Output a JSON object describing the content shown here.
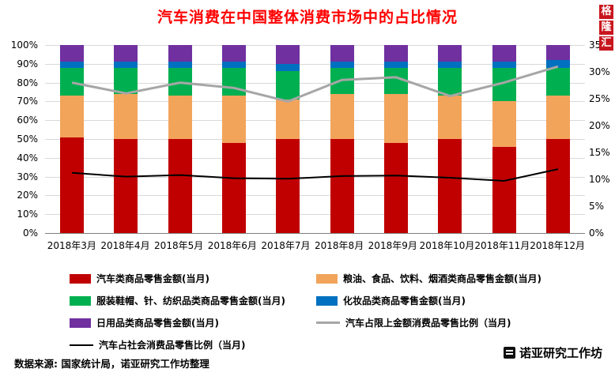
{
  "title": "汽车消费在中国整体消费市场中的占比情况",
  "source_note": "数据来源: 国家统计局，诺亚研究工作坊整理",
  "brand": "诺亚研究工作坊",
  "watermark_vertical": "格隆汇",
  "colors": {
    "title": "#FF0000",
    "grid": "#D9D9D9",
    "axis": "#7F7F7F",
    "watermark_bg": "#C8161E"
  },
  "chart_data": {
    "type": "bar",
    "subtype": "100%-stacked-column-with-lines",
    "title": "汽车消费在中国整体消费市场中的占比情况",
    "categories": [
      "2018年3月",
      "2018年4月",
      "2018年5月",
      "2018年6月",
      "2018年7月",
      "2018年8月",
      "2018年9月",
      "2018年10月",
      "2018年11月",
      "2018年12月"
    ],
    "left_axis": {
      "min": 0,
      "max": 100,
      "step": 10,
      "format": "percent",
      "tick_labels": [
        "0%",
        "10%",
        "20%",
        "30%",
        "40%",
        "50%",
        "60%",
        "70%",
        "80%",
        "90%",
        "100%"
      ]
    },
    "right_axis": {
      "min": 0,
      "max": 35,
      "step": 5,
      "format": "percent",
      "tick_labels": [
        "0%",
        "5%",
        "10%",
        "15%",
        "20%",
        "25%",
        "30%",
        "35%"
      ]
    },
    "grid": true,
    "legend_position": "bottom",
    "series": [
      {
        "name": "汽车类商品零售金额(当月)",
        "type": "bar",
        "color": "#C00000",
        "values": [
          51,
          50,
          50,
          48,
          50,
          50,
          48,
          50,
          46,
          50
        ]
      },
      {
        "name": "粮油、食品、饮料、烟酒类商品零售金额(当月)",
        "type": "bar",
        "color": "#F2A45B",
        "values": [
          22,
          24,
          23,
          25,
          21,
          24,
          26,
          23,
          24,
          23
        ]
      },
      {
        "name": "服装鞋帽、针、纺织品类商品零售金额(当月)",
        "type": "bar",
        "color": "#00B050",
        "values": [
          15,
          14,
          15,
          15,
          15,
          14,
          14,
          15,
          18,
          15
        ]
      },
      {
        "name": "化妆品类商品零售金额(当月)",
        "type": "bar",
        "color": "#0070C0",
        "values": [
          3,
          3,
          3,
          3,
          4,
          3,
          3,
          3,
          3,
          4
        ]
      },
      {
        "name": "日用品类商品零售金额(当月)",
        "type": "bar",
        "color": "#7030A0",
        "values": [
          9,
          9,
          9,
          9,
          10,
          9,
          9,
          9,
          9,
          8
        ]
      },
      {
        "name": "汽车占限上金额消费品零售比例（当月)",
        "type": "line",
        "axis": "right",
        "color": "#A6A6A6",
        "line_width": 3,
        "values": [
          28,
          26,
          28,
          27,
          24.5,
          28.5,
          29,
          25.5,
          28,
          31
        ]
      },
      {
        "name": "汽车占社会消费品零售比例（当月)",
        "type": "line",
        "axis": "right",
        "color": "#000000",
        "line_width": 2,
        "values": [
          11.2,
          10.5,
          10.8,
          10.2,
          10.1,
          10.6,
          10.7,
          10.3,
          9.7,
          11.9
        ]
      }
    ]
  }
}
